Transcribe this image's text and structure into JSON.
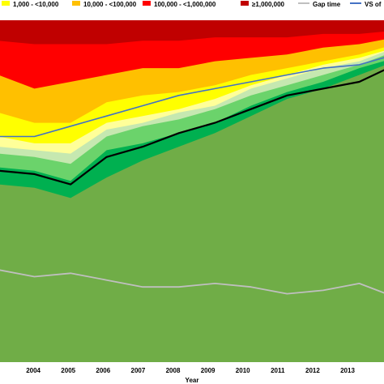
{
  "chart_data": {
    "type": "area",
    "xlabel": "Year",
    "ylabel": "",
    "ylim": [
      0,
      100
    ],
    "x": [
      "2003",
      "2004",
      "2005",
      "2006",
      "2007",
      "2008",
      "2009",
      "2010",
      "2011",
      "2012",
      "2013",
      "2014"
    ],
    "x_tick_labels": [
      "3",
      "2004",
      "2005",
      "2006",
      "2007",
      "2008",
      "2009",
      "2010",
      "2011",
      "2012",
      "2013",
      ""
    ],
    "stacked_series_cumulative_top": [
      {
        "key": "base",
        "color": "#70ad47",
        "values": [
          52,
          51,
          48,
          54,
          59,
          63,
          67,
          72,
          77,
          80,
          84,
          88
        ]
      },
      {
        "key": "dgreen",
        "color": "#00b050",
        "values": [
          57,
          56,
          53,
          62,
          64,
          67,
          70,
          75,
          79,
          82,
          86,
          89
        ]
      },
      {
        "key": "lgreen1",
        "color": "#6bd36b",
        "values": [
          61,
          60,
          58,
          66,
          69,
          71,
          74,
          78,
          81,
          84,
          87,
          91
        ]
      },
      {
        "key": "lgreen2",
        "color": "#c6e8b0",
        "values": [
          63,
          62,
          61,
          68,
          70,
          73,
          75,
          80,
          83,
          86,
          88,
          92
        ]
      },
      {
        "key": "lyellow",
        "color": "#ffff99",
        "values": [
          66,
          64,
          64,
          70,
          72,
          74,
          77,
          81,
          84,
          87,
          89,
          92
        ]
      },
      {
        "key": "yellow",
        "color": "#ffff00",
        "values": [
          73,
          70,
          70,
          76,
          78,
          79,
          81,
          84,
          86,
          88,
          90,
          93
        ]
      },
      {
        "key": "orange",
        "color": "#ffc000",
        "values": [
          84,
          80,
          82,
          84,
          86,
          86,
          88,
          89,
          90,
          92,
          93,
          95
        ]
      },
      {
        "key": "red",
        "color": "#ff0000",
        "values": [
          94,
          93,
          93,
          93,
          94,
          94,
          95,
          95,
          95,
          96,
          96,
          97
        ]
      },
      {
        "key": "darkred",
        "color": "#c00000",
        "values": [
          100,
          100,
          100,
          100,
          100,
          100,
          100,
          100,
          100,
          100,
          100,
          100
        ]
      }
    ],
    "lines": [
      {
        "key": "black",
        "color": "#000000",
        "values": [
          56,
          55,
          52,
          60,
          63,
          67,
          70,
          74,
          78,
          80,
          82,
          87
        ]
      },
      {
        "name": "VS of",
        "color": "#4472c4",
        "values": [
          66,
          66,
          69,
          72,
          75,
          78,
          80,
          82,
          84,
          86,
          87,
          90
        ]
      },
      {
        "name": "Gap time",
        "color": "#bfbfbf",
        "values": [
          27,
          25,
          26,
          24,
          22,
          22,
          23,
          22,
          20,
          21,
          23,
          19
        ]
      }
    ],
    "legend": [
      {
        "label": "1,000 - <10,000",
        "color": "#ffff00",
        "kind": "swatch"
      },
      {
        "label": "10,000 - <100,000",
        "color": "#ffc000",
        "kind": "swatch"
      },
      {
        "label": "100,000 - <1,000,000",
        "color": "#ff0000",
        "kind": "swatch"
      },
      {
        "label": "≥1,000,000",
        "color": "#c00000",
        "kind": "swatch"
      },
      {
        "label": "Gap time",
        "color": "#bfbfbf",
        "kind": "line"
      },
      {
        "label": "VS of",
        "color": "#4472c4",
        "kind": "line"
      }
    ],
    "legend_position": "top",
    "grid": false
  }
}
